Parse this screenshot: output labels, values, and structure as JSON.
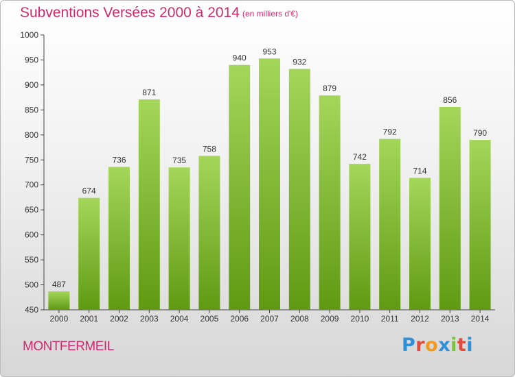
{
  "header": {
    "title": "Subventions Versées 2000 à 2014",
    "unit_note": "(en milliers d'€)"
  },
  "footer": {
    "commune": "MONTFERMEIL",
    "brand_letters": [
      "P",
      "r",
      "o",
      "x",
      "i",
      "t",
      "i"
    ],
    "brand_colors": [
      "#2f8fd8",
      "#e14b3b",
      "#f29a1d",
      "#2f8fd8",
      "#7ac142",
      "#e14b3b",
      "#2f8fd8"
    ]
  },
  "colors": {
    "title": "#cc2a6e",
    "bar_top": "#a4d65a",
    "bar_bottom": "#5f9a12",
    "axis": "#444444",
    "grid": "#cfcfcf"
  },
  "chart_data": {
    "type": "bar",
    "title": "Subventions Versées 2000 à 2014",
    "subtitle": "(en milliers d'€)",
    "categories": [
      "2000",
      "2001",
      "2002",
      "2003",
      "2004",
      "2005",
      "2006",
      "2007",
      "2008",
      "2009",
      "2010",
      "2011",
      "2012",
      "2013",
      "2014"
    ],
    "values": [
      487,
      674,
      736,
      871,
      735,
      758,
      940,
      953,
      932,
      879,
      742,
      792,
      714,
      856,
      790
    ],
    "ylim": [
      450,
      1000
    ],
    "yticks": [
      450,
      500,
      550,
      600,
      650,
      700,
      750,
      800,
      850,
      900,
      950,
      1000
    ],
    "grid": false,
    "legend": "none",
    "xlabel": "",
    "ylabel": ""
  }
}
